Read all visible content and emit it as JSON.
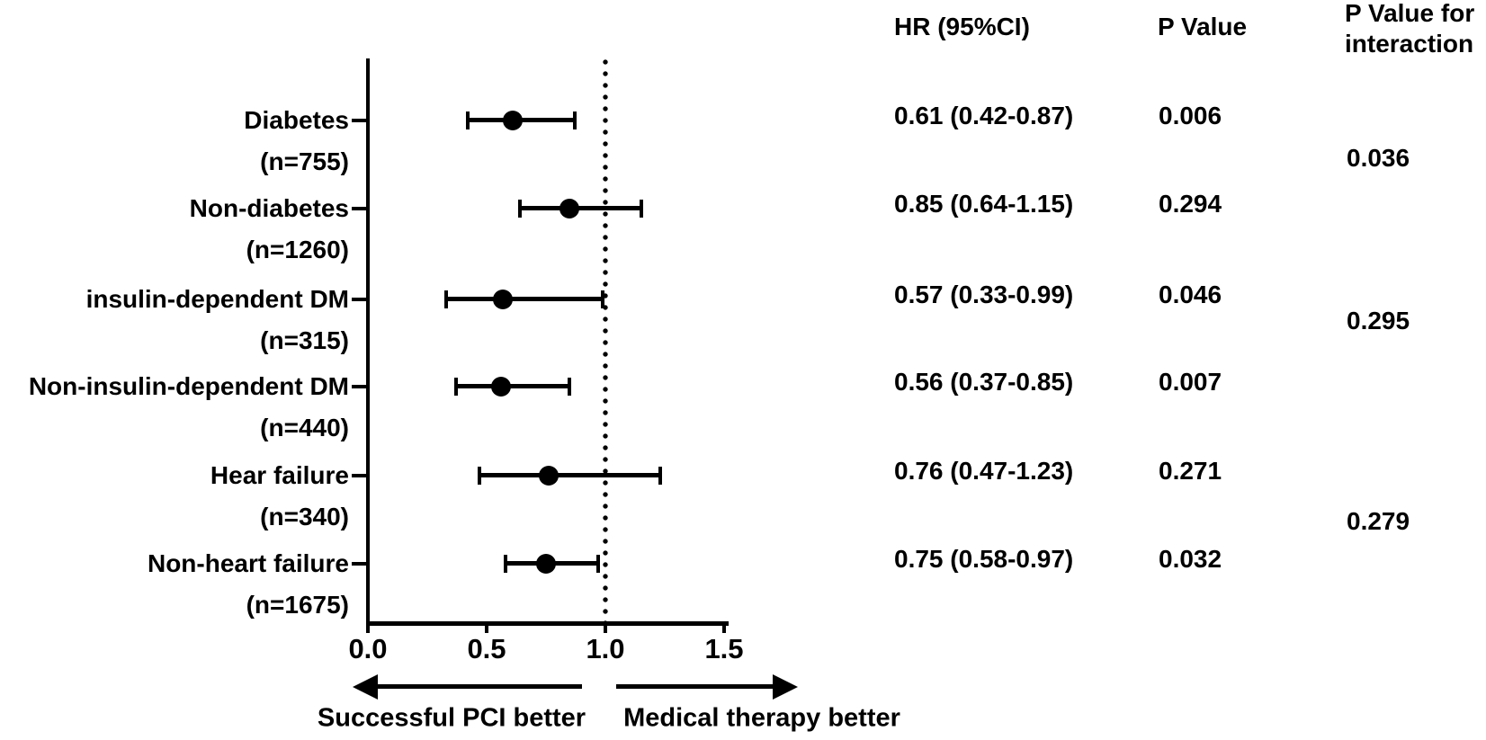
{
  "figure": {
    "columns": {
      "hr_header": "HR (95%CI)",
      "p_header": "P Value",
      "p_interaction_header_line1": "P Value for",
      "p_interaction_header_line2": "interaction"
    }
  },
  "chart_data": {
    "type": "forest",
    "x_axis": {
      "scale": "linear",
      "ticks": [
        0,
        0.5,
        1.0,
        1.5
      ],
      "tick_labels": [
        "0.0",
        "0.5",
        "1.0",
        "1.5"
      ],
      "xlim": [
        0,
        1.52
      ],
      "reference_line": 1.0
    },
    "rows": [
      {
        "label": "Diabetes",
        "n_label": "(n=755)",
        "hr": 0.61,
        "ci_low": 0.42,
        "ci_high": 0.87,
        "hr_ci_text": "0.61 (0.42-0.87)",
        "p_value": "0.006"
      },
      {
        "label": "Non-diabetes",
        "n_label": "(n=1260)",
        "hr": 0.85,
        "ci_low": 0.64,
        "ci_high": 1.15,
        "hr_ci_text": "0.85 (0.64-1.15)",
        "p_value": "0.294"
      },
      {
        "label": "insulin-dependent DM",
        "n_label": "(n=315)",
        "hr": 0.57,
        "ci_low": 0.33,
        "ci_high": 0.99,
        "hr_ci_text": "0.57 (0.33-0.99)",
        "p_value": "0.046"
      },
      {
        "label": "Non-insulin-dependent DM",
        "n_label": "(n=440)",
        "hr": 0.56,
        "ci_low": 0.37,
        "ci_high": 0.85,
        "hr_ci_text": "0.56 (0.37-0.85)",
        "p_value": "0.007"
      },
      {
        "label": "Hear failure",
        "n_label": "(n=340)",
        "hr": 0.76,
        "ci_low": 0.47,
        "ci_high": 1.23,
        "hr_ci_text": "0.76 (0.47-1.23)",
        "p_value": "0.271"
      },
      {
        "label": "Non-heart failure",
        "n_label": "(n=1675)",
        "hr": 0.75,
        "ci_low": 0.58,
        "ci_high": 0.97,
        "hr_ci_text": "0.75 (0.58-0.97)",
        "p_value": "0.032"
      }
    ],
    "interaction_p_values": [
      {
        "between_rows": [
          0,
          1
        ],
        "value": "0.036"
      },
      {
        "between_rows": [
          2,
          3
        ],
        "value": "0.295"
      },
      {
        "between_rows": [
          4,
          5
        ],
        "value": "0.279"
      }
    ],
    "direction_labels": {
      "left": "Successful PCI better",
      "right": "Medical therapy better"
    },
    "colors": {
      "foreground": "#000000",
      "background": "#ffffff"
    },
    "legend": "none",
    "grid": false
  }
}
